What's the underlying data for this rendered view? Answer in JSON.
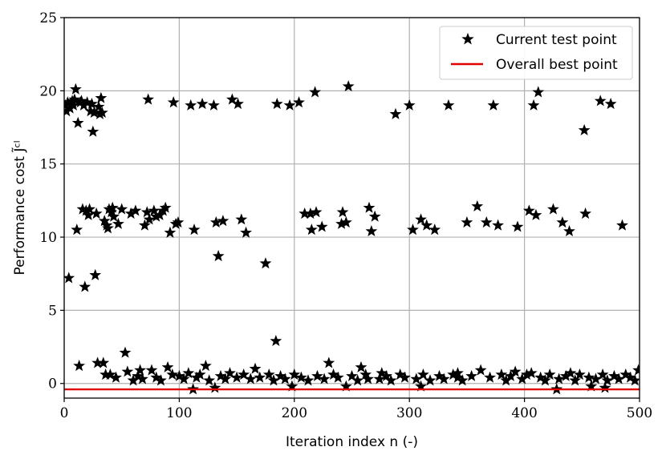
{
  "chart_data": {
    "type": "scatter",
    "title": "",
    "xlabel": "Iteration index n (-)",
    "ylabel": "Performance cost J̃ᶜˡ",
    "xlim": [
      0,
      500
    ],
    "ylim": [
      -1,
      25
    ],
    "xticks": [
      "0",
      "100",
      "200",
      "300",
      "400",
      "500"
    ],
    "yticks": [
      "0",
      "5",
      "10",
      "15",
      "20",
      "25"
    ],
    "grid": true,
    "legend_position": "top-right",
    "legend": [
      "Current test point",
      "Overall best point"
    ],
    "series": [
      {
        "name": "Current test point",
        "marker": "star",
        "color": "#000000",
        "points": [
          [
            1,
            19.0
          ],
          [
            2,
            18.6
          ],
          [
            3,
            19.2
          ],
          [
            4,
            7.2
          ],
          [
            5,
            18.8
          ],
          [
            6,
            19.1
          ],
          [
            7,
            19.3
          ],
          [
            8,
            19.0
          ],
          [
            9,
            19.4
          ],
          [
            10,
            20.1
          ],
          [
            11,
            10.5
          ],
          [
            12,
            17.8
          ],
          [
            13,
            1.2
          ],
          [
            14,
            19.2
          ],
          [
            15,
            19.3
          ],
          [
            16,
            11.9
          ],
          [
            17,
            19.0
          ],
          [
            18,
            6.6
          ],
          [
            19,
            11.8
          ],
          [
            20,
            19.2
          ],
          [
            21,
            11.5
          ],
          [
            22,
            11.9
          ],
          [
            23,
            18.6
          ],
          [
            24,
            19.1
          ],
          [
            25,
            17.2
          ],
          [
            26,
            18.5
          ],
          [
            27,
            7.4
          ],
          [
            28,
            11.6
          ],
          [
            29,
            1.4
          ],
          [
            30,
            18.9
          ],
          [
            31,
            18.4
          ],
          [
            32,
            19.5
          ],
          [
            33,
            18.5
          ],
          [
            34,
            1.4
          ],
          [
            35,
            11.1
          ],
          [
            36,
            0.6
          ],
          [
            37,
            10.8
          ],
          [
            38,
            10.6
          ],
          [
            39,
            11.9
          ],
          [
            40,
            0.6
          ],
          [
            41,
            11.7
          ],
          [
            42,
            12.0
          ],
          [
            43,
            11.4
          ],
          [
            45,
            0.4
          ],
          [
            47,
            10.9
          ],
          [
            50,
            11.9
          ],
          [
            53,
            2.1
          ],
          [
            55,
            0.8
          ],
          [
            58,
            11.6
          ],
          [
            62,
            11.8
          ],
          [
            66,
            0.9
          ],
          [
            70,
            10.8
          ],
          [
            72,
            11.7
          ],
          [
            73,
            19.4
          ],
          [
            74,
            11.2
          ],
          [
            76,
            0.9
          ],
          [
            78,
            11.8
          ],
          [
            80,
            11.4
          ],
          [
            83,
            11.5
          ],
          [
            86,
            11.8
          ],
          [
            88,
            12.0
          ],
          [
            90,
            1.1
          ],
          [
            92,
            10.3
          ],
          [
            95,
            19.2
          ],
          [
            97,
            10.9
          ],
          [
            99,
            11.0
          ],
          [
            110,
            19.0
          ],
          [
            112,
            -0.4
          ],
          [
            113,
            10.5
          ],
          [
            120,
            19.1
          ],
          [
            123,
            1.2
          ],
          [
            130,
            19.0
          ],
          [
            131,
            -0.3
          ],
          [
            132,
            11.0
          ],
          [
            134,
            8.7
          ],
          [
            138,
            11.1
          ],
          [
            146,
            19.4
          ],
          [
            151,
            19.1
          ],
          [
            154,
            11.2
          ],
          [
            158,
            10.3
          ],
          [
            175,
            8.2
          ],
          [
            184,
            2.9
          ],
          [
            185,
            19.1
          ],
          [
            196,
            19.0
          ],
          [
            204,
            19.2
          ],
          [
            209,
            11.6
          ],
          [
            214,
            11.6
          ],
          [
            215,
            10.5
          ],
          [
            218,
            19.9
          ],
          [
            219,
            11.7
          ],
          [
            224,
            10.7
          ],
          [
            230,
            1.4
          ],
          [
            241,
            10.9
          ],
          [
            242,
            11.7
          ],
          [
            245,
            11.0
          ],
          [
            247,
            20.3
          ],
          [
            265,
            12.0
          ],
          [
            267,
            10.4
          ],
          [
            270,
            11.4
          ],
          [
            288,
            18.4
          ],
          [
            300,
            19.0
          ],
          [
            303,
            10.5
          ],
          [
            310,
            11.2
          ],
          [
            315,
            10.8
          ],
          [
            322,
            10.5
          ],
          [
            334,
            19.0
          ],
          [
            350,
            11.0
          ],
          [
            359,
            12.1
          ],
          [
            367,
            11.0
          ],
          [
            373,
            19.0
          ],
          [
            377,
            10.8
          ],
          [
            394,
            10.7
          ],
          [
            404,
            11.8
          ],
          [
            408,
            19.0
          ],
          [
            410,
            11.5
          ],
          [
            412,
            19.9
          ],
          [
            425,
            11.9
          ],
          [
            433,
            11.0
          ],
          [
            439,
            10.4
          ],
          [
            452,
            17.3
          ],
          [
            453,
            11.6
          ],
          [
            466,
            19.3
          ],
          [
            475,
            19.1
          ],
          [
            485,
            10.8
          ],
          [
            428,
            -0.4
          ],
          [
            458,
            -0.2
          ],
          [
            470,
            -0.3
          ],
          [
            245,
            -0.2
          ],
          [
            310,
            -0.2
          ],
          [
            198,
            -0.2
          ],
          [
            60,
            0.2
          ],
          [
            64,
            0.5
          ],
          [
            68,
            0.3
          ],
          [
            80,
            0.4
          ],
          [
            84,
            0.2
          ],
          [
            94,
            0.6
          ],
          [
            100,
            0.5
          ],
          [
            104,
            0.3
          ],
          [
            108,
            0.7
          ],
          [
            115,
            0.4
          ],
          [
            118,
            0.6
          ],
          [
            126,
            0.2
          ],
          [
            136,
            0.5
          ],
          [
            140,
            0.3
          ],
          [
            144,
            0.7
          ],
          [
            150,
            0.4
          ],
          [
            156,
            0.6
          ],
          [
            162,
            0.3
          ],
          [
            166,
            1.0
          ],
          [
            170,
            0.4
          ],
          [
            178,
            0.6
          ],
          [
            182,
            0.2
          ],
          [
            188,
            0.5
          ],
          [
            192,
            0.3
          ],
          [
            200,
            0.6
          ],
          [
            206,
            0.4
          ],
          [
            212,
            0.2
          ],
          [
            220,
            0.5
          ],
          [
            226,
            0.3
          ],
          [
            234,
            0.6
          ],
          [
            238,
            0.4
          ],
          [
            250,
            0.5
          ],
          [
            255,
            0.2
          ],
          [
            258,
            1.1
          ],
          [
            262,
            0.6
          ],
          [
            274,
            0.3
          ],
          [
            280,
            0.5
          ],
          [
            284,
            0.2
          ],
          [
            292,
            0.6
          ],
          [
            296,
            0.4
          ],
          [
            306,
            0.3
          ],
          [
            312,
            0.6
          ],
          [
            318,
            0.2
          ],
          [
            326,
            0.5
          ],
          [
            330,
            0.3
          ],
          [
            338,
            0.6
          ],
          [
            342,
            0.4
          ],
          [
            346,
            0.2
          ],
          [
            354,
            0.5
          ],
          [
            362,
            0.9
          ],
          [
            370,
            0.4
          ],
          [
            380,
            0.6
          ],
          [
            384,
            0.2
          ],
          [
            388,
            0.5
          ],
          [
            398,
            0.3
          ],
          [
            402,
            0.6
          ],
          [
            414,
            0.4
          ],
          [
            418,
            0.2
          ],
          [
            422,
            0.6
          ],
          [
            430,
            0.3
          ],
          [
            436,
            0.5
          ],
          [
            444,
            0.2
          ],
          [
            448,
            0.6
          ],
          [
            456,
            0.4
          ],
          [
            462,
            0.3
          ],
          [
            468,
            0.6
          ],
          [
            472,
            0.2
          ],
          [
            478,
            0.5
          ],
          [
            482,
            0.3
          ],
          [
            488,
            0.6
          ],
          [
            492,
            0.4
          ],
          [
            496,
            0.2
          ],
          [
            499,
            0.9
          ],
          [
            264,
            0.3
          ],
          [
            276,
            0.7
          ],
          [
            342,
            0.7
          ],
          [
            392,
            0.8
          ],
          [
            406,
            0.7
          ],
          [
            440,
            0.7
          ]
        ]
      },
      {
        "name": "Overall best point",
        "type": "line",
        "color": "#e00000",
        "y": -0.4
      }
    ]
  }
}
